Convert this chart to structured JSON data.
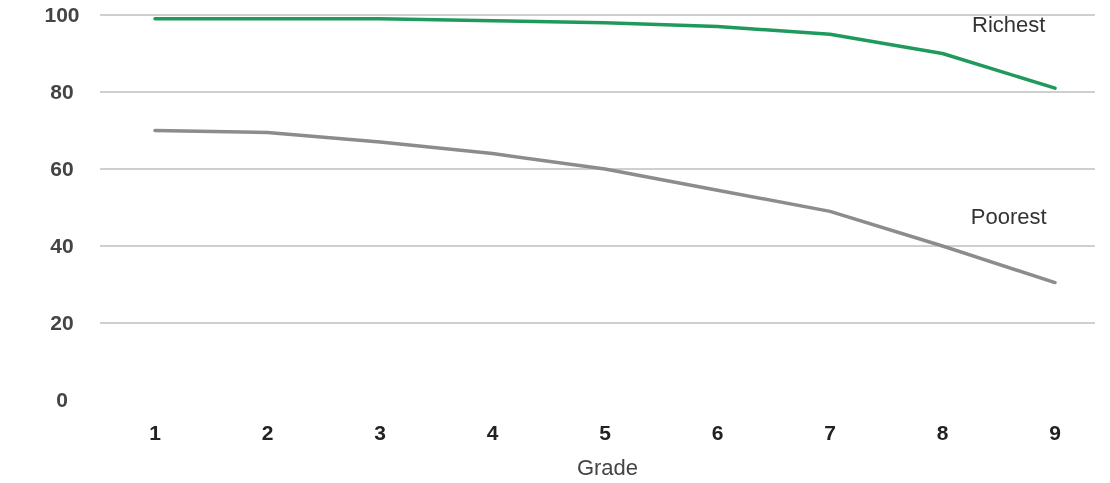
{
  "chart_data": {
    "type": "line",
    "xlabel": "Grade",
    "categories": [
      "1",
      "2",
      "3",
      "4",
      "5",
      "6",
      "7",
      "8",
      "9"
    ],
    "series": [
      {
        "name": "Richest",
        "color": "#1f9a5c",
        "values": [
          99,
          99,
          99,
          98.5,
          98,
          97,
          95,
          90,
          81
        ]
      },
      {
        "name": "Poorest",
        "color": "#8c8c8c",
        "values": [
          70,
          69.5,
          67,
          64,
          60,
          54.5,
          49,
          40,
          30.5
        ]
      }
    ],
    "ylim": [
      0,
      100
    ],
    "yticks": [
      0,
      20,
      40,
      60,
      80,
      100
    ],
    "grid": "y",
    "marker": "none",
    "line_style": "solid"
  }
}
